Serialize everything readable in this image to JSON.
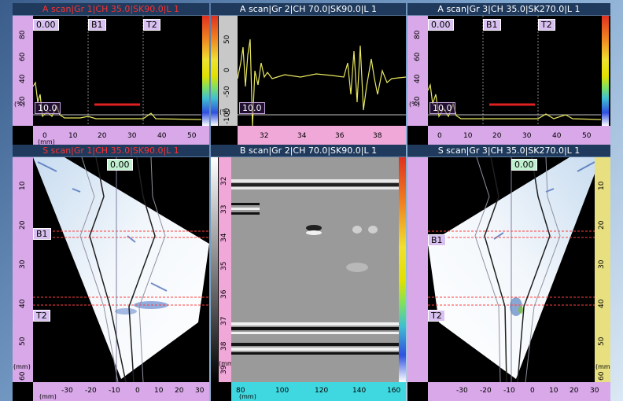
{
  "panels": {
    "ascan_left": {
      "title": "A scan|Gr 1|CH 35.0|SK90.0|L 1",
      "value_label": "0.00",
      "gate1": "B1",
      "gate2": "T2",
      "threshold": "10.0",
      "vunit": "(%)",
      "vticks": [
        "80",
        "60",
        "40",
        "20"
      ],
      "hticks": [
        "0",
        "10",
        "20",
        "30",
        "40",
        "50"
      ],
      "hunit": "(mm)"
    },
    "ascan_mid": {
      "title": "A scan|Gr 2|CH 70.0|SK90.0|L 1",
      "threshold": "10.0",
      "vunit": "(%)",
      "vticks": [
        "50",
        "0",
        "-50",
        "-100"
      ],
      "hticks": [
        "32",
        "34",
        "36",
        "38"
      ]
    },
    "ascan_right": {
      "title": "A scan|Gr 3|CH 35.0|SK270.0|L 1",
      "value_label": "0.00",
      "gate1": "B1",
      "gate2": "T2",
      "threshold": "10.0",
      "vunit": "(%)",
      "vticks": [
        "80",
        "60",
        "40",
        "20"
      ],
      "hticks": [
        "0",
        "10",
        "20",
        "30",
        "40",
        "50"
      ]
    },
    "sscan_left": {
      "title": "S scan|Gr 1|CH 35.0|SK90.0|L 1",
      "value_label": "0.00",
      "gate1": "B1",
      "gate2": "T2",
      "vticks": [
        "10",
        "20",
        "30",
        "40",
        "50",
        "60"
      ],
      "vunit": "(mm)",
      "hticks": [
        "-30",
        "-20",
        "-10",
        "0",
        "10",
        "20",
        "30"
      ],
      "hunit": "(mm)"
    },
    "bscan_mid": {
      "title": "B scan|Gr 2|CH 70.0|SK90.0|L 1",
      "vticks": [
        "32",
        "33",
        "34",
        "35",
        "36",
        "37",
        "38",
        "39"
      ],
      "vunit": "(mm)",
      "hticks": [
        "80",
        "100",
        "120",
        "140",
        "160"
      ],
      "hunit": "(mm)"
    },
    "sscan_right": {
      "title": "S scan|Gr 3|CH 35.0|SK270.0|L 1",
      "value_label": "0.00",
      "gate1": "B1",
      "gate2": "T2",
      "vticks": [
        "10",
        "20",
        "30",
        "40",
        "50",
        "60"
      ],
      "vunit": "(mm)",
      "hticks": [
        "-30",
        "-20",
        "-10",
        "0",
        "10",
        "20",
        "30"
      ],
      "hunit": "(mm)"
    }
  },
  "colors": {
    "title_bg": "#1f3a5c",
    "active_title": "#ff3030",
    "trace": "#e8e860",
    "gate": "#e02020",
    "cursor": "#ff4040"
  }
}
